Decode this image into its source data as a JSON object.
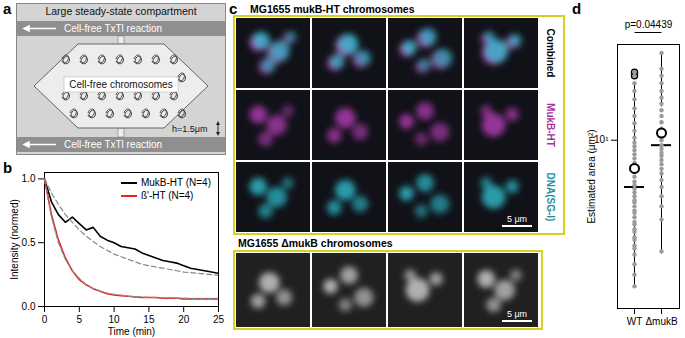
{
  "panel_a": {
    "letter": "a",
    "title": "Large steady-state compartment",
    "flow_labels": [
      "Cell-free TxTl reaction",
      "Cell-free TxTl reaction"
    ],
    "center_label": "Cell-free chromosomes",
    "height_label": "h=1.5μm"
  },
  "panel_c": {
    "letter": "c",
    "top": {
      "title": "MG1655 mukB-HT chromosomes",
      "rows": [
        "Combined",
        "MukB-HT",
        "DNA(SG-I)"
      ],
      "scale_bar": "5 μm"
    },
    "bottom": {
      "title": "MG1655 ΔmukB chromosomes",
      "scale_bar": "5 μm"
    }
  },
  "chart_data": [
    {
      "panel": "b",
      "type": "line",
      "xlabel": "Time (min)",
      "ylabel": "Intensity (normed)",
      "x": [
        0,
        1,
        2,
        3,
        4,
        5,
        6,
        7,
        8,
        9,
        10,
        11,
        12,
        13,
        14,
        15,
        16,
        17,
        18,
        19,
        20,
        21,
        22,
        23,
        24,
        25
      ],
      "series": [
        {
          "name": "MukB-HT (N=4)",
          "color": "#000000",
          "values": [
            1,
            0.82,
            0.72,
            0.66,
            0.7,
            0.65,
            0.6,
            0.62,
            0.55,
            0.52,
            0.5,
            0.47,
            0.46,
            0.45,
            0.42,
            0.4,
            0.38,
            0.36,
            0.35,
            0.34,
            0.32,
            0.3,
            0.29,
            0.28,
            0.27,
            0.26
          ],
          "fit_values": [
            1,
            0.89,
            0.8,
            0.72,
            0.66,
            0.6,
            0.55,
            0.51,
            0.47,
            0.44,
            0.41,
            0.39,
            0.37,
            0.35,
            0.33,
            0.32,
            0.31,
            0.3,
            0.29,
            0.28,
            0.27,
            0.265,
            0.26,
            0.255,
            0.25,
            0.245
          ]
        },
        {
          "name": "ß'-HT (N=4)",
          "color": "#e8231d",
          "values": [
            1,
            0.72,
            0.52,
            0.38,
            0.28,
            0.21,
            0.17,
            0.14,
            0.12,
            0.1,
            0.09,
            0.085,
            0.08,
            0.075,
            0.07,
            0.07,
            0.07,
            0.065,
            0.065,
            0.065,
            0.06,
            0.06,
            0.06,
            0.06,
            0.06,
            0.06
          ],
          "fit_values": [
            1,
            0.7,
            0.5,
            0.37,
            0.28,
            0.22,
            0.17,
            0.14,
            0.12,
            0.105,
            0.095,
            0.088,
            0.082,
            0.078,
            0.075,
            0.072,
            0.07,
            0.068,
            0.067,
            0.066,
            0.065,
            0.064,
            0.064,
            0.063,
            0.063,
            0.063
          ]
        }
      ],
      "xlim": [
        0,
        25
      ],
      "xticks": [
        0,
        5,
        10,
        15,
        20,
        25
      ],
      "ylim": [
        0,
        1.05
      ],
      "yticks": [
        0,
        0.5,
        1
      ],
      "legend": "top-right"
    },
    {
      "panel": "d",
      "type": "box",
      "ylabel": "Estimated area (μm²)",
      "categories": [
        "WT",
        "ΔmukB"
      ],
      "values": [
        [
          3.0,
          3.3,
          3.6,
          3.9,
          4.1,
          4.2,
          4.4,
          4.5,
          4.7,
          4.8,
          5.0,
          5.1,
          5.3,
          5.5,
          5.6,
          5.8,
          6.0,
          6.1,
          6.3,
          6.5,
          6.7,
          6.9,
          7.1,
          7.4,
          7.7,
          8.0,
          8.3,
          8.6,
          8.9,
          9.2,
          9.5,
          9.8,
          10.2,
          10.8,
          11.5,
          12.2,
          13.0,
          14.0,
          15.0,
          16.0,
          17.0,
          17.5
        ],
        [
          4.0,
          5.2,
          5.8,
          6.3,
          6.8,
          7.2,
          7.6,
          7.9,
          8.2,
          8.5,
          8.8,
          9.0,
          9.3,
          9.6,
          10.0,
          10.5,
          11.0,
          11.6,
          12.2,
          12.8,
          13.5,
          14.2,
          15.0,
          16.0,
          17.0,
          18.0,
          20.5
        ]
      ],
      "log": "y",
      "ylim": [
        2.5,
        22
      ],
      "yticks": [
        {
          "value": 10,
          "label": "10¹"
        }
      ],
      "annotation": "p=0.04439"
    }
  ]
}
